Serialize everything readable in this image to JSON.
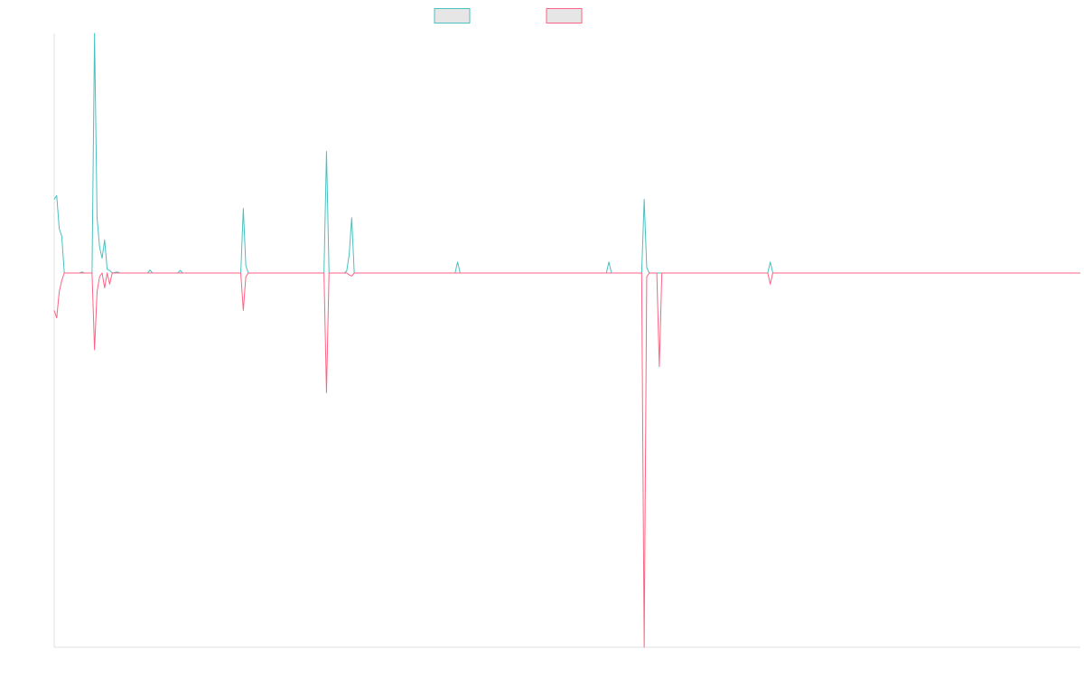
{
  "colors": {
    "series_a": "#4bc0c0",
    "series_b": "#ff6384",
    "legend_fill": "#e6e6e6",
    "axis": "#e0e0e0"
  },
  "legend": {
    "placement": "top-center",
    "entries": [
      {
        "label": "",
        "color_key": "series_a"
      },
      {
        "label": "",
        "color_key": "series_b"
      }
    ]
  },
  "chart_data": {
    "type": "line",
    "title": "",
    "xlabel": "",
    "ylabel": "",
    "grid": false,
    "ylim": [
      -100,
      65
    ],
    "xlim": [
      0,
      407
    ],
    "series": [
      {
        "color_key": "series_a",
        "points": [
          [
            0,
            20
          ],
          [
            1,
            21
          ],
          [
            2,
            12
          ],
          [
            3,
            10
          ],
          [
            4,
            0
          ],
          [
            10,
            0
          ],
          [
            11,
            0.3
          ],
          [
            12,
            0
          ],
          [
            15,
            0
          ],
          [
            16,
            65
          ],
          [
            17,
            15
          ],
          [
            18,
            7
          ],
          [
            19,
            4
          ],
          [
            20,
            9
          ],
          [
            21,
            1
          ],
          [
            22,
            0.7
          ],
          [
            23,
            0
          ],
          [
            25,
            0.3
          ],
          [
            26,
            0
          ],
          [
            37,
            0
          ],
          [
            38,
            0.8
          ],
          [
            39,
            0
          ],
          [
            49,
            0
          ],
          [
            50,
            0.7
          ],
          [
            51,
            0
          ],
          [
            74,
            0
          ],
          [
            75,
            17.5
          ],
          [
            76,
            2
          ],
          [
            77,
            0
          ],
          [
            107,
            0
          ],
          [
            108,
            33
          ],
          [
            109,
            0
          ],
          [
            115,
            0
          ],
          [
            116,
            0.5
          ],
          [
            117,
            5
          ],
          [
            118,
            15
          ],
          [
            119,
            0
          ],
          [
            159,
            0
          ],
          [
            160,
            3
          ],
          [
            161,
            0
          ],
          [
            219,
            0
          ],
          [
            220,
            3
          ],
          [
            221,
            0
          ],
          [
            233,
            0
          ],
          [
            234,
            20
          ],
          [
            235,
            1.5
          ],
          [
            236,
            0
          ],
          [
            283,
            0
          ],
          [
            284,
            3
          ],
          [
            285,
            0
          ],
          [
            407,
            0
          ]
        ]
      },
      {
        "color_key": "series_b",
        "points": [
          [
            0,
            -10
          ],
          [
            1,
            -12
          ],
          [
            2,
            -5
          ],
          [
            3,
            -2
          ],
          [
            4,
            0
          ],
          [
            15,
            0
          ],
          [
            16,
            -20.5
          ],
          [
            17,
            -5
          ],
          [
            18,
            -1
          ],
          [
            19,
            0
          ],
          [
            20,
            -4
          ],
          [
            21,
            0
          ],
          [
            22,
            -3
          ],
          [
            23,
            0
          ],
          [
            74,
            0
          ],
          [
            75,
            -10
          ],
          [
            76,
            -1
          ],
          [
            77,
            0
          ],
          [
            107,
            0
          ],
          [
            108,
            -32
          ],
          [
            109,
            0
          ],
          [
            116,
            0
          ],
          [
            117,
            -0.5
          ],
          [
            118,
            -0.8
          ],
          [
            119,
            0
          ],
          [
            233,
            0
          ],
          [
            234,
            -100
          ],
          [
            235,
            -1
          ],
          [
            236,
            0
          ],
          [
            239,
            0
          ],
          [
            240,
            -25
          ],
          [
            241,
            0
          ],
          [
            283,
            0
          ],
          [
            284,
            -3
          ],
          [
            285,
            0
          ],
          [
            407,
            0
          ]
        ]
      }
    ]
  }
}
